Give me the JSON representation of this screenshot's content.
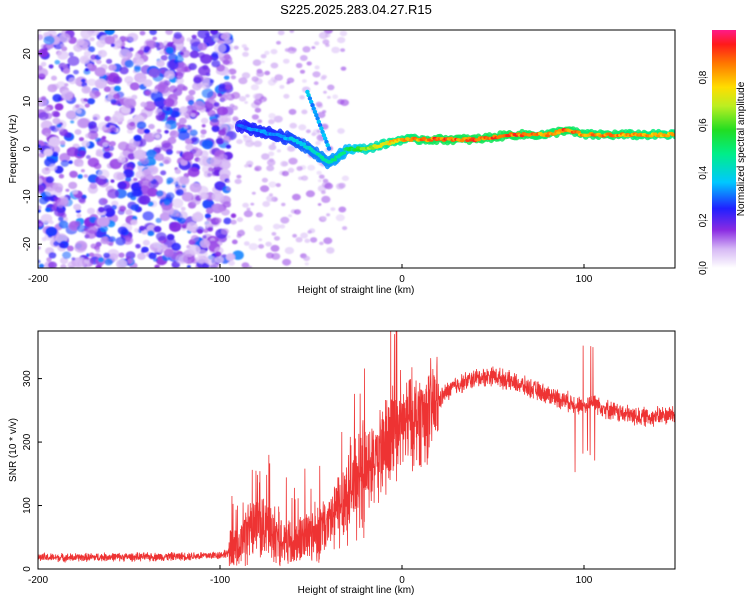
{
  "title": "S225.2025.283.04.27.R15",
  "chart_data": [
    {
      "type": "heatmap",
      "panel": "top",
      "xlabel": "Height of straight line (km)",
      "ylabel": "Frequency (Hz)",
      "xlim": [
        -200,
        150
      ],
      "ylim": [
        -25,
        25
      ],
      "xticks": [
        -200,
        -100,
        0,
        100
      ],
      "yticks": [
        20,
        10,
        0,
        -10,
        -20
      ],
      "colorbar": {
        "label": "Normalized spectral amplitude",
        "range": [
          0.0,
          1.0
        ],
        "ticks": [
          0.0,
          0.2,
          0.4,
          0.6,
          0.8
        ]
      },
      "ridge": {
        "description": "dominant frequency track",
        "x": [
          -90,
          -80,
          -70,
          -60,
          -50,
          -40,
          -30,
          -20,
          -10,
          0,
          10,
          20,
          40,
          60,
          80,
          90,
          100,
          120,
          150
        ],
        "freq": [
          5,
          4,
          3,
          2,
          0,
          -3,
          0,
          0,
          1,
          2,
          2,
          2,
          2,
          3,
          3,
          4,
          3,
          3,
          3
        ],
        "amplitude": [
          0.3,
          0.35,
          0.35,
          0.4,
          0.45,
          0.5,
          0.55,
          0.7,
          0.8,
          0.85,
          0.9,
          0.95,
          0.95,
          0.95,
          0.9,
          0.95,
          0.9,
          0.9,
          0.85
        ]
      }
    },
    {
      "type": "line",
      "panel": "bottom",
      "xlabel": "Height of straight line (km)",
      "ylabel": "SNR (10 * v/v)",
      "xlim": [
        -200,
        150
      ],
      "ylim": [
        0,
        375
      ],
      "xticks": [
        -200,
        -100,
        0,
        100
      ],
      "yticks": [
        0,
        100,
        200,
        300
      ],
      "color": "#ee3333",
      "series": [
        {
          "name": "SNR",
          "x": [
            -200,
            -180,
            -160,
            -140,
            -120,
            -100,
            -90,
            -85,
            -80,
            -70,
            -60,
            -50,
            -40,
            -35,
            -30,
            -25,
            -20,
            -15,
            -10,
            -5,
            0,
            5,
            10,
            15,
            20,
            25,
            30,
            40,
            50,
            60,
            70,
            80,
            90,
            95,
            100,
            105,
            110,
            120,
            130,
            140,
            150
          ],
          "values": [
            18,
            18,
            19,
            19,
            20,
            22,
            30,
            60,
            70,
            55,
            40,
            55,
            70,
            95,
            120,
            140,
            150,
            165,
            185,
            205,
            225,
            235,
            240,
            245,
            265,
            280,
            290,
            300,
            305,
            295,
            285,
            275,
            265,
            260,
            255,
            265,
            255,
            245,
            240,
            240,
            245
          ]
        }
      ]
    }
  ]
}
